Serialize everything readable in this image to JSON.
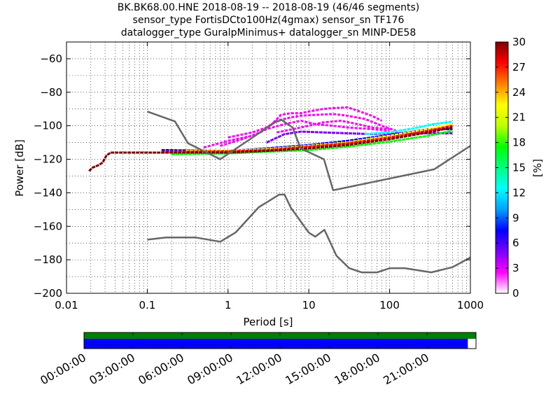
{
  "title_lines": [
    "BK.BK68.00.HNE   2018-08-19 -- 2018-08-19  (46/46 segments)",
    "sensor_type FortisDCto100Hz(4gmax) sensor_sn TF176",
    "datalogger_type GuralpMinimus+ datalogger_sn MINP-DE58"
  ],
  "chart_data": [
    {
      "type": "heatmap",
      "xlabel": "Period [s]",
      "ylabel": "Power [dB]",
      "xscale": "log",
      "xlim": [
        0.01,
        1000
      ],
      "ylim": [
        -200,
        -50
      ],
      "xticks": [
        {
          "value": 0.01,
          "label": "0.01"
        },
        {
          "value": 0.1,
          "label": "0.1"
        },
        {
          "value": 1,
          "label": "1"
        },
        {
          "value": 10,
          "label": "10"
        },
        {
          "value": 100,
          "label": "100"
        },
        {
          "value": 1000,
          "label": "1000"
        }
      ],
      "yticks": [
        {
          "value": -60,
          "label": "−60"
        },
        {
          "value": -80,
          "label": "−80"
        },
        {
          "value": -100,
          "label": "−100"
        },
        {
          "value": -120,
          "label": "−120"
        },
        {
          "value": -140,
          "label": "−140"
        },
        {
          "value": -160,
          "label": "−160"
        },
        {
          "value": -180,
          "label": "−180"
        },
        {
          "value": -200,
          "label": "−200"
        }
      ],
      "grid": true,
      "colorbar": {
        "label": "[%]",
        "min": 0,
        "max": 30,
        "ticks": [
          {
            "value": 0,
            "label": "0"
          },
          {
            "value": 3,
            "label": "3"
          },
          {
            "value": 6,
            "label": "6"
          },
          {
            "value": 9,
            "label": "9"
          },
          {
            "value": 12,
            "label": "12"
          },
          {
            "value": 15,
            "label": "15"
          },
          {
            "value": 18,
            "label": "18"
          },
          {
            "value": 21,
            "label": "21"
          },
          {
            "value": 24,
            "label": "24"
          },
          {
            "value": 27,
            "label": "27"
          },
          {
            "value": 30,
            "label": "30"
          }
        ],
        "colors": [
          "#ffffff",
          "#ff00ff",
          "#7a00ff",
          "#0000ff",
          "#00a0ff",
          "#00ffff",
          "#00ff80",
          "#00ff00",
          "#c0ff00",
          "#ffff00",
          "#ff8000",
          "#ff0000",
          "#800000"
        ]
      },
      "model_curves": [
        {
          "name": "NHNM",
          "color": "#666666",
          "points": [
            [
              0.1,
              -91.5
            ],
            [
              0.22,
              -97.4
            ],
            [
              0.32,
              -110.5
            ],
            [
              0.8,
              -120
            ],
            [
              3.8,
              -98
            ],
            [
              4.6,
              -96.5
            ],
            [
              6.3,
              -101
            ],
            [
              7.9,
              -113.5
            ],
            [
              15.4,
              -120
            ],
            [
              20,
              -138.5
            ],
            [
              354.8,
              -126
            ],
            [
              1000,
              -112
            ]
          ]
        },
        {
          "name": "NLNM",
          "color": "#666666",
          "points": [
            [
              0.1,
              -168
            ],
            [
              0.17,
              -166.7
            ],
            [
              0.4,
              -166.7
            ],
            [
              0.8,
              -169.2
            ],
            [
              1.24,
              -163.7
            ],
            [
              2.4,
              -148.6
            ],
            [
              4.3,
              -141.1
            ],
            [
              5,
              -141.1
            ],
            [
              6,
              -149
            ],
            [
              10,
              -163.8
            ],
            [
              12,
              -166.2
            ],
            [
              15.6,
              -162.1
            ],
            [
              21.9,
              -177.5
            ],
            [
              31.6,
              -185
            ],
            [
              45,
              -187.5
            ],
            [
              70,
              -187.5
            ],
            [
              101,
              -185
            ],
            [
              154,
              -185
            ],
            [
              328,
              -187.5
            ],
            [
              600,
              -184.4
            ],
            [
              1000,
              -178.6
            ]
          ]
        }
      ],
      "psd_bands": [
        {
          "color": "#800000",
          "pct": 30,
          "points": [
            [
              0.019,
              -127
            ],
            [
              0.021,
              -125
            ],
            [
              0.025,
              -123.5
            ],
            [
              0.028,
              -122
            ],
            [
              0.031,
              -118
            ],
            [
              0.035,
              -116
            ],
            [
              0.1,
              -116
            ],
            [
              1,
              -116
            ],
            [
              3,
              -115
            ],
            [
              10,
              -113.5
            ],
            [
              30,
              -111.5
            ],
            [
              100,
              -108
            ],
            [
              300,
              -104
            ],
            [
              600,
              -101
            ]
          ]
        },
        {
          "color": "#ff0000",
          "pct": 27,
          "points": [
            [
              0.15,
              -115.5
            ],
            [
              1,
              -115.3
            ],
            [
              3,
              -114.5
            ],
            [
              10,
              -112.5
            ],
            [
              30,
              -110.5
            ],
            [
              100,
              -107
            ],
            [
              300,
              -103
            ],
            [
              600,
              -100
            ]
          ]
        },
        {
          "color": "#ffff00",
          "pct": 24,
          "points": [
            [
              0.3,
              -115
            ],
            [
              1,
              -114.8
            ],
            [
              3,
              -114
            ],
            [
              10,
              -112
            ],
            [
              30,
              -110
            ],
            [
              100,
              -106
            ],
            [
              300,
              -102
            ],
            [
              600,
              -99
            ]
          ]
        },
        {
          "color": "#00ff00",
          "pct": 18,
          "points": [
            [
              0.2,
              -117
            ],
            [
              1,
              -116.5
            ],
            [
              3,
              -115.5
            ],
            [
              10,
              -114.5
            ],
            [
              30,
              -112.5
            ],
            [
              100,
              -109.5
            ],
            [
              300,
              -106
            ],
            [
              600,
              -103
            ]
          ]
        },
        {
          "color": "#00ffff",
          "pct": 12,
          "points": [
            [
              50,
              -105
            ],
            [
              100,
              -104
            ],
            [
              200,
              -101.5
            ],
            [
              350,
              -99
            ],
            [
              600,
              -97.5
            ]
          ]
        },
        {
          "color": "#0000ff",
          "pct": 6,
          "points": [
            [
              0.15,
              -114.5
            ],
            [
              1,
              -115
            ],
            [
              3,
              -113.5
            ],
            [
              10,
              -111.5
            ],
            [
              30,
              -109
            ],
            [
              100,
              -105.5
            ],
            [
              300,
              -102
            ],
            [
              600,
              -102
            ]
          ]
        },
        {
          "color": "#7a00ff",
          "pct": 3,
          "points": [
            [
              3,
              -110
            ],
            [
              5,
              -105
            ],
            [
              8,
              -103.5
            ],
            [
              15,
              -104
            ],
            [
              30,
              -104.5
            ],
            [
              60,
              -105
            ],
            [
              100,
              -104.5
            ],
            [
              300,
              -104.5
            ],
            [
              600,
              -104.5
            ]
          ]
        }
      ],
      "psd_traces": [
        {
          "color": "#ff00ff",
          "pct": 1.5,
          "points": [
            [
              0.8,
              -112
            ],
            [
              1.5,
              -108
            ],
            [
              2.5,
              -104
            ],
            [
              3.5,
              -99
            ],
            [
              4.5,
              -93.5
            ],
            [
              6,
              -92.5
            ],
            [
              8,
              -92.5
            ],
            [
              10,
              -91.5
            ],
            [
              15,
              -90
            ],
            [
              20,
              -89.5
            ],
            [
              30,
              -89
            ],
            [
              40,
              -91
            ],
            [
              60,
              -94
            ],
            [
              80,
              -97
            ]
          ]
        },
        {
          "color": "#ff00ff",
          "pct": 1.5,
          "points": [
            [
              1,
              -107
            ],
            [
              2,
              -104
            ],
            [
              3,
              -101
            ],
            [
              4,
              -97
            ],
            [
              6,
              -95
            ],
            [
              8,
              -94
            ],
            [
              12,
              -93.5
            ],
            [
              20,
              -93
            ],
            [
              30,
              -94
            ],
            [
              50,
              -96
            ],
            [
              80,
              -100
            ],
            [
              120,
              -103
            ]
          ]
        },
        {
          "color": "#ff00ff",
          "pct": 1.5,
          "points": [
            [
              0.5,
              -113
            ],
            [
              1,
              -109
            ],
            [
              2,
              -106
            ],
            [
              3,
              -102
            ],
            [
              5,
              -99
            ],
            [
              8,
              -97
            ],
            [
              12,
              -99
            ],
            [
              20,
              -100
            ],
            [
              30,
              -101
            ],
            [
              60,
              -102
            ],
            [
              100,
              -103
            ]
          ]
        },
        {
          "color": "#ff00ff",
          "pct": 1.5,
          "points": [
            [
              4,
              -104
            ],
            [
              8,
              -101
            ],
            [
              15,
              -98
            ],
            [
              25,
              -97
            ],
            [
              40,
              -99
            ],
            [
              60,
              -101
            ],
            [
              100,
              -102
            ]
          ]
        }
      ]
    },
    {
      "type": "timeline",
      "tick_labels": [
        "00:00:00",
        "03:00:00",
        "06:00:00",
        "09:00:00",
        "12:00:00",
        "15:00:00",
        "18:00:00",
        "21:00:00"
      ],
      "hours_total": 24,
      "coverage": [
        {
          "color": "#008000",
          "start_hour": 0,
          "end_hour": 24
        },
        {
          "color": "#0000ff",
          "start_hour": 0,
          "end_hour": 23.5
        }
      ]
    }
  ]
}
